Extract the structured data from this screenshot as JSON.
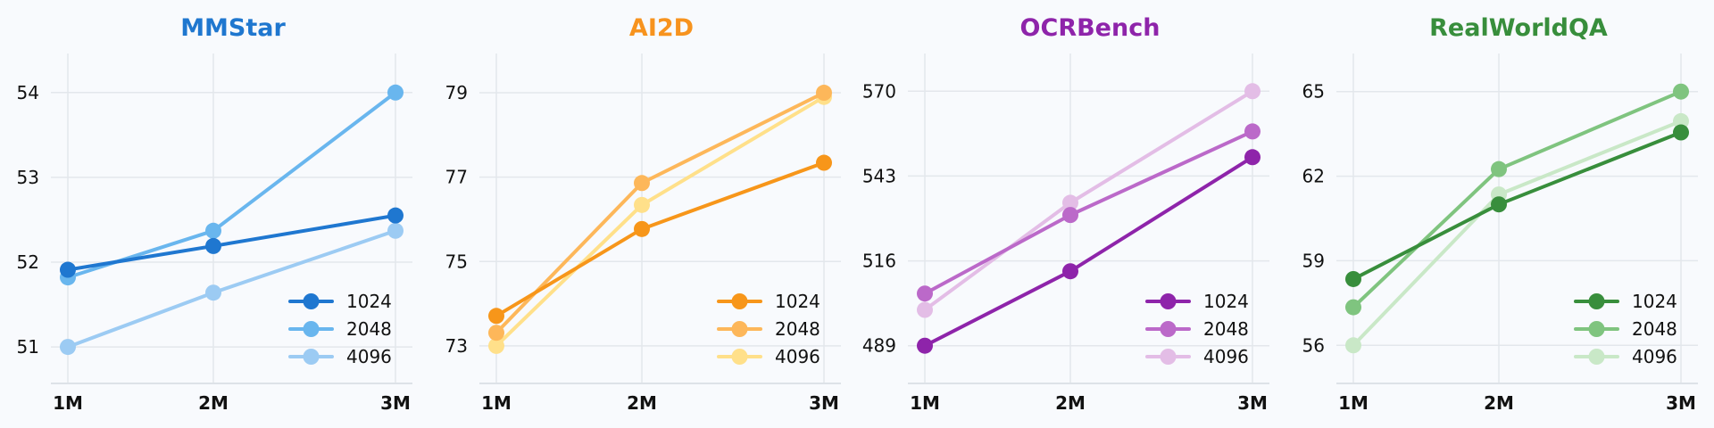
{
  "chart_data": [
    {
      "type": "line",
      "title": "MMStar",
      "title_color": "#1f77cf",
      "categories": [
        "1M",
        "2M",
        "3M"
      ],
      "yticks": [
        51,
        52,
        53,
        54
      ],
      "ylim": [
        50.57,
        54.46
      ],
      "grid": true,
      "legend_position": "lower-right",
      "series": [
        {
          "name": "1024",
          "color": "#1f77d0",
          "values": [
            51.91,
            52.19,
            52.55
          ]
        },
        {
          "name": "2048",
          "color": "#69b6ee",
          "values": [
            51.82,
            52.37,
            54.0
          ]
        },
        {
          "name": "4096",
          "color": "#9ccbf3",
          "values": [
            51.0,
            51.64,
            52.37
          ]
        }
      ]
    },
    {
      "type": "line",
      "title": "AI2D",
      "title_color": "#f7931e",
      "categories": [
        "1M",
        "2M",
        "3M"
      ],
      "yticks": [
        73,
        75,
        77,
        79
      ],
      "ylim": [
        72.11,
        79.93
      ],
      "grid": true,
      "legend_position": "lower-right",
      "series": [
        {
          "name": "1024",
          "color": "#f7961a",
          "values": [
            73.71,
            75.77,
            77.34
          ]
        },
        {
          "name": "2048",
          "color": "#fdb75a",
          "values": [
            73.31,
            76.86,
            79.0
          ]
        },
        {
          "name": "4096",
          "color": "#ffe08a",
          "values": [
            73.0,
            76.34,
            78.9
          ]
        }
      ]
    },
    {
      "type": "line",
      "title": "OCRBench",
      "title_color": "#8e24aa",
      "categories": [
        "1M",
        "2M",
        "3M"
      ],
      "yticks": [
        489,
        516,
        543,
        570
      ],
      "ylim": [
        477.0,
        582.0
      ],
      "grid": true,
      "legend_position": "lower-right",
      "series": [
        {
          "name": "1024",
          "color": "#8e24aa",
          "values": [
            489.0,
            512.7,
            549.0
          ]
        },
        {
          "name": "2048",
          "color": "#bb69c9",
          "values": [
            505.6,
            530.6,
            557.2
          ]
        },
        {
          "name": "4096",
          "color": "#e3bde6",
          "values": [
            500.4,
            534.5,
            570.0
          ]
        }
      ]
    },
    {
      "type": "line",
      "title": "RealWorldQA",
      "title_color": "#388e3c",
      "categories": [
        "1M",
        "2M",
        "3M"
      ],
      "yticks": [
        56,
        59,
        62,
        65
      ],
      "ylim": [
        54.65,
        66.35
      ],
      "grid": true,
      "legend_position": "lower-right",
      "series": [
        {
          "name": "1024",
          "color": "#388e3c",
          "values": [
            58.35,
            61.0,
            63.55
          ]
        },
        {
          "name": "2048",
          "color": "#7fc47f",
          "values": [
            57.35,
            62.25,
            65.0
          ]
        },
        {
          "name": "4096",
          "color": "#c9e8c7",
          "values": [
            56.0,
            61.35,
            63.95
          ]
        }
      ]
    }
  ]
}
